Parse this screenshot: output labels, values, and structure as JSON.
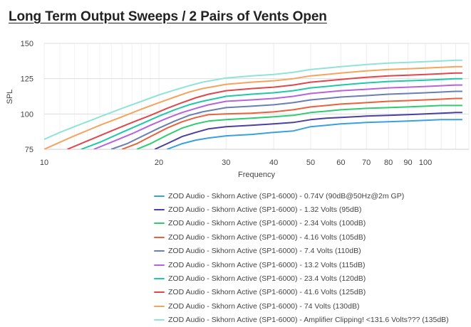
{
  "title": "Long Term Output Sweeps / 2 Pairs of Vents Open",
  "chart_data": {
    "type": "line",
    "xlabel": "Frequency",
    "ylabel": "SPL",
    "xscale": "log",
    "xlim": [
      10,
      130
    ],
    "ylim": [
      75,
      150
    ],
    "x_ticks": [
      "10",
      "20",
      "30",
      "40",
      "50",
      "60",
      "70",
      "80",
      "90",
      "100"
    ],
    "y_ticks": [
      "75",
      "100",
      "125",
      "150"
    ],
    "grid": true,
    "legend_position": "bottom",
    "series": [
      {
        "name": "ZOD Audio - Skhorn Active (SP1-6000) - 0.74V (90dB@50Hz@2m GP)",
        "color": "#3aa0e0",
        "x": [
          21,
          23,
          25,
          27,
          30,
          35,
          40,
          45,
          50,
          55,
          60,
          70,
          80,
          90,
          100,
          110,
          120,
          125
        ],
        "y": [
          75,
          79,
          81.5,
          83,
          84.5,
          85.5,
          87,
          88,
          91,
          92,
          93,
          94,
          94.5,
          95,
          95.5,
          96,
          96,
          96
        ]
      },
      {
        "name": "ZOD Audio - Skhorn Active (SP1-6000) - 1.32 Volts (95dB)",
        "color": "#4b3fa0",
        "x": [
          19.5,
          21,
          23,
          25,
          27,
          30,
          35,
          40,
          45,
          50,
          55,
          60,
          70,
          80,
          90,
          100,
          110,
          120,
          125
        ],
        "y": [
          75,
          79,
          84,
          87,
          89.5,
          91,
          92,
          93,
          94,
          96,
          97,
          97.5,
          98.5,
          99,
          99.5,
          100,
          100.5,
          101,
          101
        ]
      },
      {
        "name": "ZOD Audio - Skhorn Active (SP1-6000) - 2.34 Volts (100dB)",
        "color": "#2ecc71",
        "x": [
          17.5,
          19,
          21,
          23,
          25,
          27,
          30,
          35,
          40,
          45,
          50,
          55,
          60,
          70,
          80,
          90,
          100,
          110,
          120,
          125
        ],
        "y": [
          75,
          79,
          85,
          90,
          93,
          95,
          96,
          97,
          98,
          99,
          101,
          102,
          103,
          104,
          104.5,
          105,
          105.5,
          106,
          106,
          106
        ]
      },
      {
        "name": "ZOD Audio - Skhorn Active (SP1-6000) - 4.16 Volts (105dB)",
        "color": "#e8623c",
        "x": [
          16,
          17.5,
          19,
          21,
          23,
          25,
          27,
          30,
          35,
          40,
          45,
          50,
          55,
          60,
          70,
          80,
          90,
          100,
          110,
          120,
          125
        ],
        "y": [
          75,
          79,
          84,
          90,
          94.5,
          97.5,
          99.5,
          100,
          100.5,
          101.5,
          103,
          105,
          106,
          107,
          108,
          109,
          109.5,
          110,
          110.5,
          111,
          111
        ]
      },
      {
        "name": "ZOD Audio - Skhorn Active (SP1-6000) - 7.4 Volts (110dB)",
        "color": "#6a7fb0",
        "x": [
          15,
          16.5,
          18,
          20,
          22,
          24,
          26,
          30,
          35,
          40,
          45,
          50,
          55,
          60,
          70,
          80,
          90,
          100,
          110,
          120,
          125
        ],
        "y": [
          75,
          79,
          84,
          90,
          95,
          99,
          101.5,
          104.5,
          105.5,
          106.5,
          108,
          110,
          111,
          112,
          113,
          114,
          114.5,
          115,
          115.5,
          116,
          116
        ]
      },
      {
        "name": "ZOD Audio - Skhorn Active (SP1-6000) - 13.2 Volts (115dB)",
        "color": "#b565d8",
        "x": [
          13.5,
          15,
          17,
          19,
          21,
          23,
          25,
          27,
          30,
          35,
          40,
          45,
          50,
          55,
          60,
          70,
          80,
          90,
          100,
          110,
          120,
          125
        ],
        "y": [
          75,
          80,
          86,
          92,
          97,
          101,
          104,
          106.5,
          109,
          110,
          111,
          112.5,
          114.5,
          115.5,
          116.5,
          117.5,
          118.5,
          119,
          119.5,
          120,
          120.5,
          120.5
        ]
      },
      {
        "name": "ZOD Audio - Skhorn Active (SP1-6000) - 23.4 Volts (120dB)",
        "color": "#20c9a6",
        "x": [
          12.5,
          14,
          16,
          18,
          20,
          22,
          24,
          26,
          30,
          35,
          40,
          45,
          50,
          55,
          60,
          70,
          80,
          90,
          100,
          110,
          120,
          125
        ],
        "y": [
          75,
          80,
          87,
          93,
          98.5,
          103,
          106.5,
          109,
          112.5,
          114,
          115,
          116.5,
          118.5,
          119.5,
          120.5,
          122,
          123,
          123.5,
          124,
          124.5,
          125,
          125
        ]
      },
      {
        "name": "ZOD Audio - Skhorn Active (SP1-6000) - 41.6 Volts (125dB)",
        "color": "#e0474c",
        "x": [
          11.5,
          13,
          15,
          17,
          19,
          21,
          23,
          25,
          27,
          30,
          35,
          40,
          45,
          50,
          55,
          60,
          70,
          80,
          90,
          100,
          110,
          120,
          125
        ],
        "y": [
          75,
          81,
          88,
          94,
          99,
          104,
          108,
          111.5,
          114,
          116.5,
          118,
          119,
          120.5,
          122.5,
          123.5,
          124.5,
          126,
          127,
          127.5,
          128,
          128.5,
          129,
          129
        ]
      },
      {
        "name": "ZOD Audio - Skhorn Active (SP1-6000) - 74 Volts (130dB)",
        "color": "#f4a460",
        "x": [
          10,
          11,
          12,
          14,
          16,
          18,
          20,
          22,
          24,
          26,
          30,
          35,
          40,
          45,
          50,
          55,
          60,
          70,
          80,
          90,
          100,
          110,
          120,
          125
        ],
        "y": [
          75,
          80,
          84.5,
          92,
          98,
          103.5,
          108,
          112,
          115.5,
          118,
          121,
          122.5,
          123.5,
          125,
          127,
          128,
          129,
          130.5,
          131.5,
          132,
          132.5,
          133,
          133.5,
          133.5
        ]
      },
      {
        "name": "ZOD Audio - Skhorn Active (SP1-6000) - Amplifier Clipping! <131.6 Volts??? (135dB)",
        "color": "#8fe3d8",
        "x": [
          10,
          11,
          12,
          14,
          16,
          18,
          20,
          22,
          24,
          26,
          30,
          35,
          40,
          45,
          50,
          55,
          60,
          70,
          80,
          90,
          100,
          110,
          120,
          125
        ],
        "y": [
          82,
          87,
          91,
          98,
          104,
          109,
          113.5,
          117,
          120,
          122.5,
          125.5,
          127,
          128,
          129.5,
          131.5,
          132.5,
          133.5,
          135,
          136,
          136.5,
          137,
          137.5,
          138,
          138
        ]
      }
    ]
  }
}
